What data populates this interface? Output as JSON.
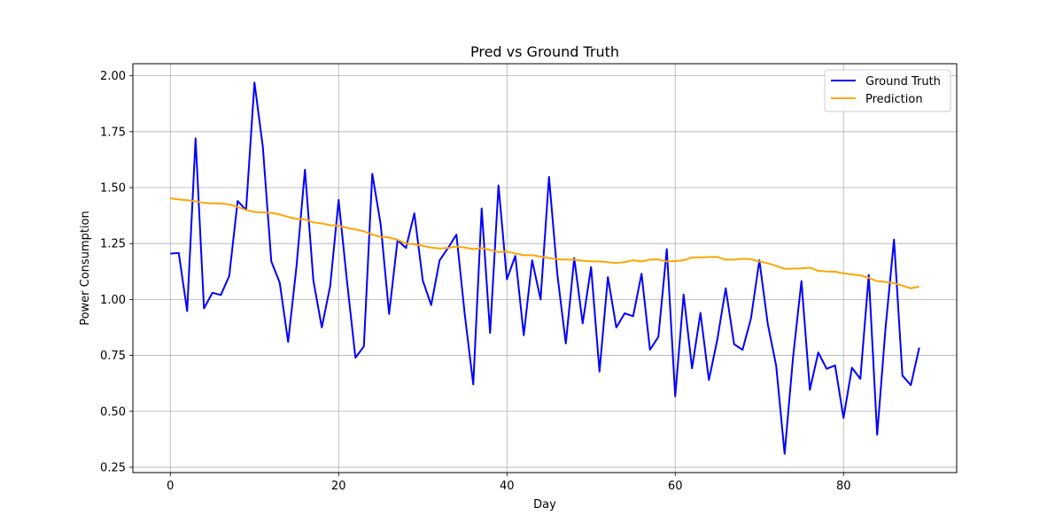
{
  "chart_data": {
    "type": "line",
    "title": "Pred vs Ground Truth",
    "xlabel": "Day",
    "ylabel": "Power Consumption",
    "xlim": [
      -4.45,
      93.45
    ],
    "ylim": [
      0.226,
      2.054
    ],
    "xticks": [
      0,
      20,
      40,
      60,
      80
    ],
    "yticks": [
      0.25,
      0.5,
      0.75,
      1.0,
      1.25,
      1.5,
      1.75,
      2.0
    ],
    "ytick_labels": [
      "0.25",
      "0.50",
      "0.75",
      "1.00",
      "1.25",
      "1.50",
      "1.75",
      "2.00"
    ],
    "grid": true,
    "legend_position": "top-right",
    "series": [
      {
        "name": "Ground Truth",
        "color": "#0000ff",
        "values": [
          1.205,
          1.208,
          0.948,
          1.72,
          0.96,
          1.03,
          1.02,
          1.105,
          1.44,
          1.4,
          1.97,
          1.68,
          1.17,
          1.075,
          0.81,
          1.15,
          1.58,
          1.085,
          0.875,
          1.06,
          1.445,
          1.08,
          0.74,
          0.79,
          1.562,
          1.335,
          0.935,
          1.265,
          1.23,
          1.385,
          1.085,
          0.975,
          1.175,
          1.23,
          1.29,
          0.93,
          0.62,
          1.407,
          0.85,
          1.51,
          1.09,
          1.195,
          0.84,
          1.175,
          1.0,
          1.548,
          1.11,
          0.803,
          1.185,
          0.893,
          1.145,
          0.678,
          1.1,
          0.875,
          0.938,
          0.925,
          1.115,
          0.775,
          0.833,
          1.225,
          0.567,
          1.022,
          0.692,
          0.94,
          0.64,
          0.82,
          1.05,
          0.8,
          0.775,
          0.915,
          1.175,
          0.89,
          0.703,
          0.31,
          0.74,
          1.082,
          0.596,
          0.763,
          0.69,
          0.705,
          0.47,
          0.695,
          0.645,
          1.11,
          0.395,
          0.875,
          1.268,
          0.66,
          0.617,
          0.785
        ]
      },
      {
        "name": "Prediction",
        "color": "#ffa500",
        "values": [
          1.452,
          1.447,
          1.444,
          1.438,
          1.432,
          1.43,
          1.429,
          1.425,
          1.414,
          1.4,
          1.391,
          1.39,
          1.387,
          1.38,
          1.369,
          1.36,
          1.358,
          1.345,
          1.34,
          1.332,
          1.33,
          1.32,
          1.313,
          1.305,
          1.29,
          1.28,
          1.277,
          1.267,
          1.25,
          1.247,
          1.24,
          1.232,
          1.228,
          1.23,
          1.237,
          1.232,
          1.225,
          1.23,
          1.222,
          1.212,
          1.214,
          1.206,
          1.198,
          1.198,
          1.192,
          1.185,
          1.18,
          1.178,
          1.178,
          1.173,
          1.17,
          1.17,
          1.166,
          1.163,
          1.167,
          1.175,
          1.17,
          1.178,
          1.179,
          1.17,
          1.172,
          1.175,
          1.188,
          1.188,
          1.19,
          1.19,
          1.178,
          1.178,
          1.182,
          1.18,
          1.17,
          1.162,
          1.15,
          1.137,
          1.138,
          1.139,
          1.142,
          1.128,
          1.125,
          1.124,
          1.117,
          1.112,
          1.108,
          1.096,
          1.082,
          1.078,
          1.073,
          1.062,
          1.05,
          1.058
        ]
      }
    ]
  }
}
